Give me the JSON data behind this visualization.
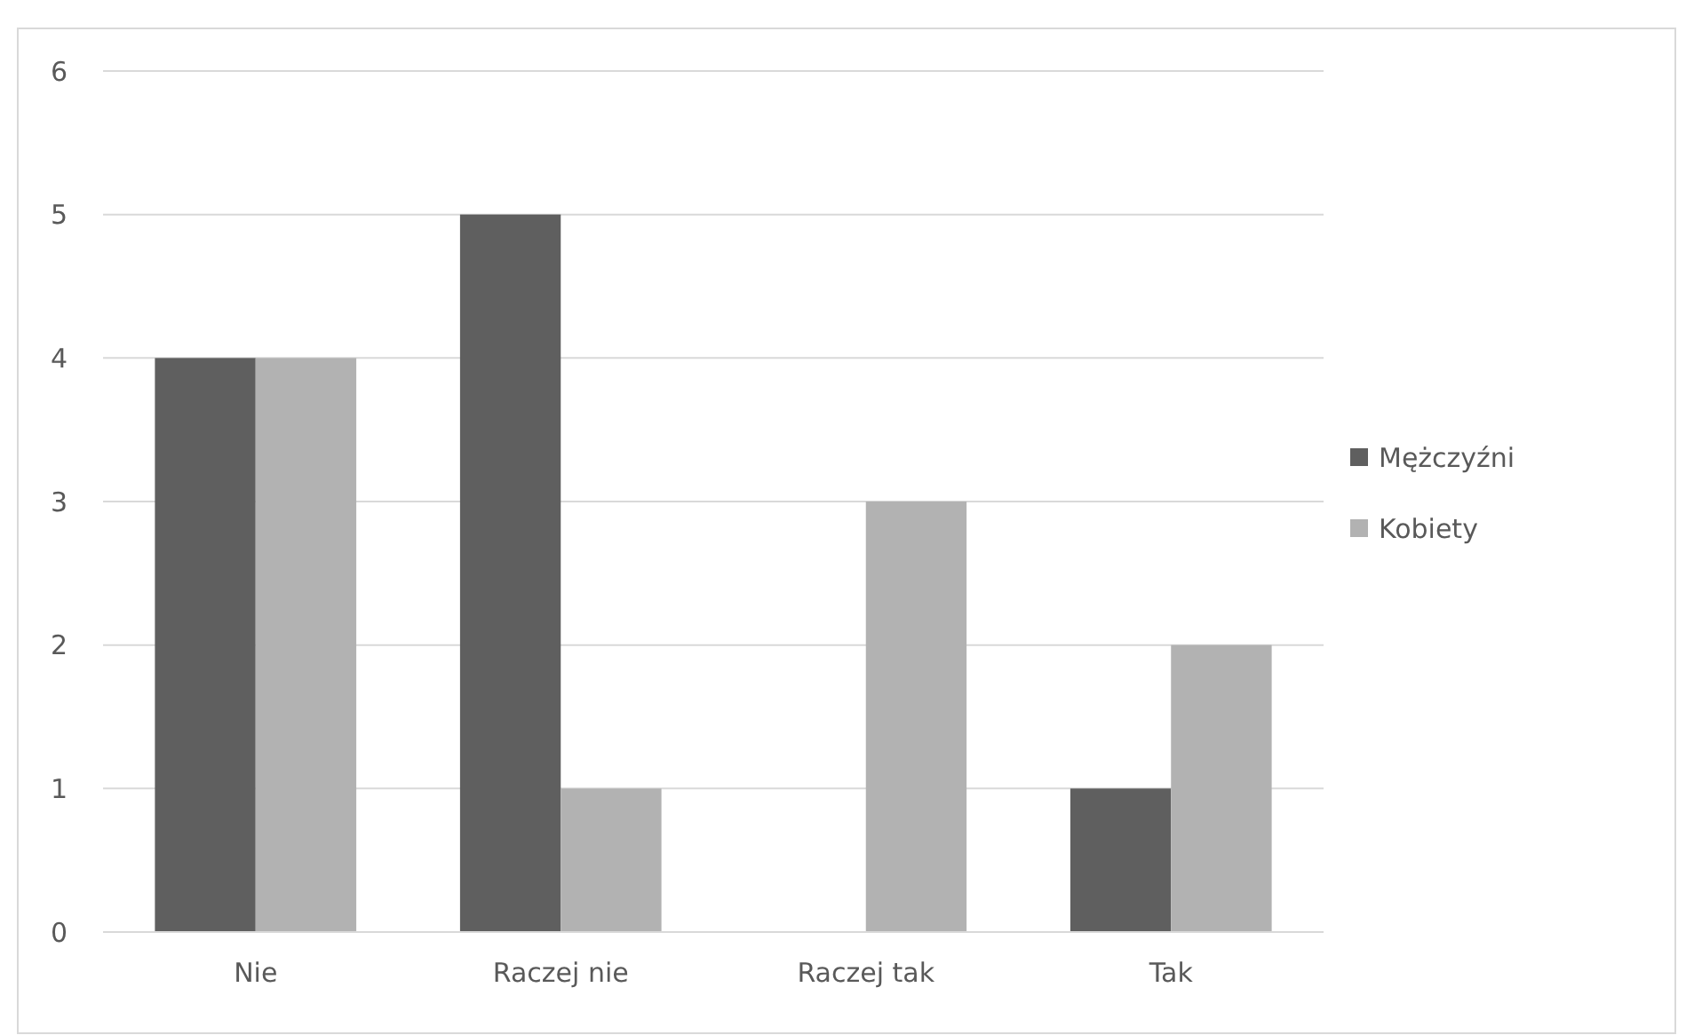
{
  "chart_data": {
    "type": "bar",
    "categories": [
      "Nie",
      "Raczej nie",
      "Raczej tak",
      "Tak"
    ],
    "series": [
      {
        "name": "Mężczyźni",
        "color": "#5f5f5f",
        "values": [
          4,
          5,
          0,
          1
        ]
      },
      {
        "name": "Kobiety",
        "color": "#b2b2b2",
        "values": [
          4,
          1,
          3,
          2
        ]
      }
    ],
    "ylim": [
      0,
      6
    ],
    "yticks": [
      0,
      1,
      2,
      3,
      4,
      5,
      6
    ],
    "grid": "y",
    "legend": "right"
  }
}
